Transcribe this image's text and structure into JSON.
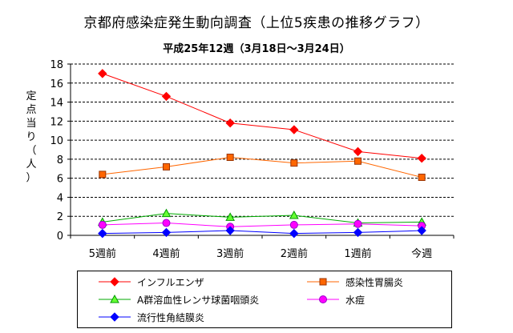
{
  "title": "京都府感染症発生動向調査（上位5疾患の推移グラフ）",
  "subtitle": "平成25年12週（3月18日～3月24日）",
  "chart_data": {
    "type": "line",
    "title": "京都府感染症発生動向調査（上位5疾患の推移グラフ）",
    "subtitle": "平成25年12週（3月18日～3月24日）",
    "ylabel": "定点当り（人）",
    "ylabel_chars": [
      "定",
      "点",
      "当",
      "り",
      "（",
      "人",
      "）"
    ],
    "ylim": [
      0,
      18
    ],
    "yticks": [
      0,
      2,
      4,
      6,
      8,
      10,
      12,
      14,
      16,
      18
    ],
    "grid": "horizontal-dashed",
    "legend_position": "bottom",
    "categories": [
      "5週前",
      "4週前",
      "3週前",
      "2週前",
      "1週前",
      "今週"
    ],
    "series": [
      {
        "name": "インフルエンザ",
        "color": "#ff0000",
        "marker": "diamond",
        "values": [
          17.0,
          14.6,
          11.8,
          11.1,
          8.8,
          8.1
        ]
      },
      {
        "name": "感染性胃腸炎",
        "color": "#ff6600",
        "marker": "square",
        "values": [
          6.4,
          7.2,
          8.2,
          7.6,
          7.8,
          6.1
        ]
      },
      {
        "name": "A群溶血性レンサ球菌咽頭炎",
        "color": "#00aa00",
        "marker": "triangle",
        "values": [
          1.4,
          2.3,
          1.9,
          2.1,
          1.3,
          1.4
        ]
      },
      {
        "name": "水痘",
        "color": "#ff00ff",
        "marker": "circle",
        "values": [
          1.1,
          1.3,
          0.9,
          1.1,
          1.2,
          1.0
        ]
      },
      {
        "name": "流行性角結膜炎",
        "color": "#0000ff",
        "marker": "diamond",
        "values": [
          0.2,
          0.3,
          0.5,
          0.2,
          0.3,
          0.5
        ]
      }
    ]
  }
}
